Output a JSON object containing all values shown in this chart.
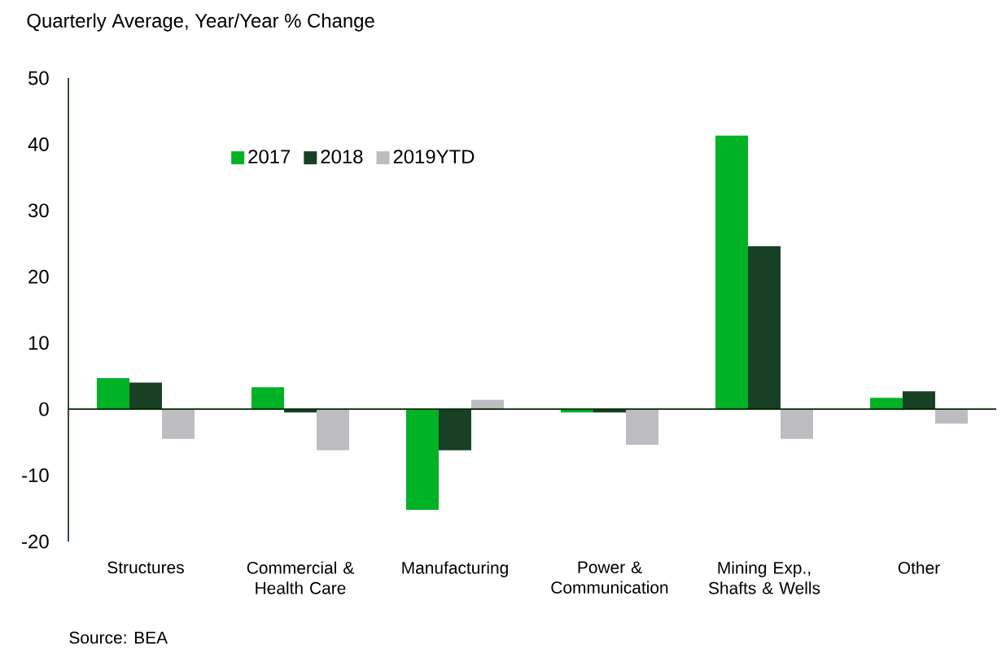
{
  "chart_data": {
    "type": "bar",
    "title": "Quarterly Average, Year/Year % Change",
    "categories": [
      "Structures",
      "Commercial & Health Care",
      "Manufacturing",
      "Power & Communication",
      "Mining Exp., Shafts & Wells",
      "Other"
    ],
    "series": [
      {
        "name": "2017",
        "color": "#00b226",
        "values": [
          4.7,
          3.3,
          -15.2,
          -0.5,
          41.3,
          1.7
        ]
      },
      {
        "name": "2018",
        "color": "#184025",
        "values": [
          4.0,
          -0.5,
          -6.2,
          -0.5,
          24.6,
          2.7
        ]
      },
      {
        "name": "2019YTD",
        "color": "#bdbcc1",
        "values": [
          -4.5,
          -6.2,
          1.4,
          -5.4,
          -4.5,
          -2.2
        ]
      }
    ],
    "ylim": [
      -20,
      50
    ],
    "yticks": [
      -20,
      -10,
      0,
      10,
      20,
      30,
      40,
      50
    ],
    "legend": "top left",
    "annotations": [
      "Source: BEA"
    ]
  }
}
